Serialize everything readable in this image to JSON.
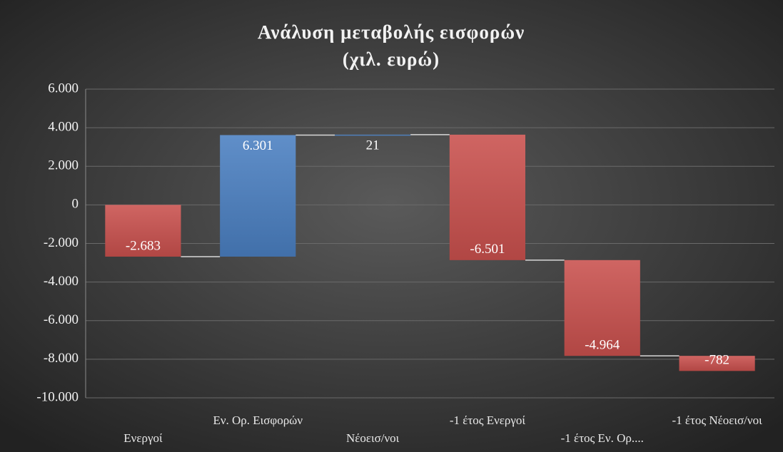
{
  "chart_data": {
    "type": "waterfall",
    "title": "Ανάλυση μεταβολής εισφορών",
    "subtitle": "(χιλ. ευρώ)",
    "categories": [
      "Ενεργοί",
      "Εν. Ορ. Εισφορών",
      "Νέοεισ/νοι",
      "-1 έτος Ενεργοί",
      "-1 έτος Εν. Ορ....",
      "-1 έτος Νέοεισ/νοι"
    ],
    "values": [
      -2683,
      6301,
      21,
      -6501,
      -4964,
      -782
    ],
    "value_labels": [
      "-2.683",
      "6.301",
      "21",
      "-6.501",
      "-4.964",
      "-782"
    ],
    "increase_color": "#4a7fc1",
    "decrease_color": "#c9504d",
    "ylim": [
      -10000,
      6000
    ],
    "yticks": [
      {
        "value": -10000,
        "label": "-10.000"
      },
      {
        "value": -8000,
        "label": "-8.000"
      },
      {
        "value": -6000,
        "label": "-6.000"
      },
      {
        "value": -4000,
        "label": "-4.000"
      },
      {
        "value": -2000,
        "label": "-2.000"
      },
      0,
      {
        "value": 2000,
        "label": "2.000"
      },
      {
        "value": 4000,
        "label": "4.000"
      },
      {
        "value": 6000,
        "label": "6.000"
      }
    ],
    "grid": true
  }
}
